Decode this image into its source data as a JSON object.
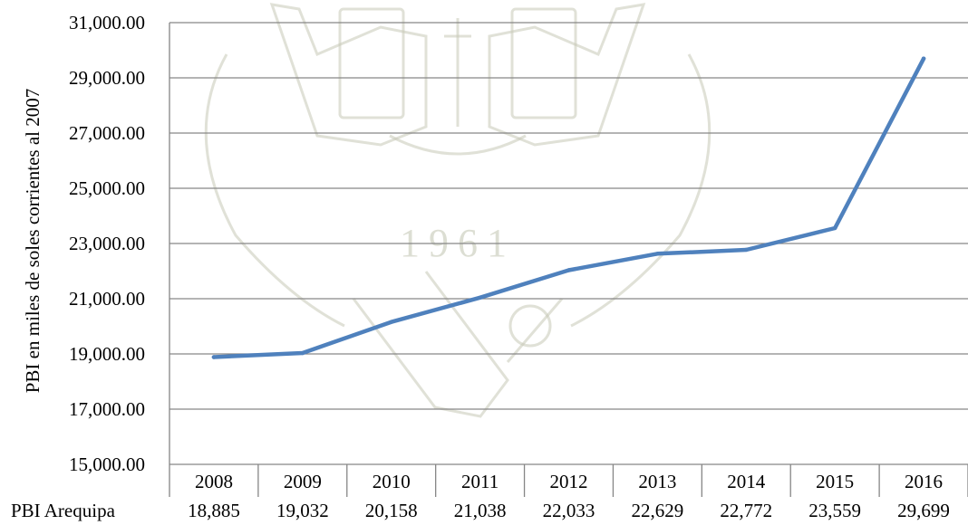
{
  "chart_data": {
    "type": "line",
    "categories": [
      "2008",
      "2009",
      "2010",
      "2011",
      "2012",
      "2013",
      "2014",
      "2015",
      "2016"
    ],
    "series": [
      {
        "name": "PBI Arequipa",
        "values": [
          18885,
          19032,
          20158,
          21038,
          22033,
          22629,
          22772,
          23559,
          29699
        ],
        "value_labels": [
          "18,885",
          "19,032",
          "20,158",
          "21,038",
          "22,033",
          "22,629",
          "22,772",
          "23,559",
          "29,699"
        ],
        "color": "#4f81bd"
      }
    ],
    "ylabel": "PBI en miles de soles corrientes al 2007",
    "ylim": [
      15000,
      31000
    ],
    "yticks": [
      15000,
      17000,
      19000,
      21000,
      23000,
      25000,
      27000,
      29000,
      31000
    ],
    "ytick_labels": [
      "15,000.00",
      "17,000.00",
      "19,000.00",
      "21,000.00",
      "23,000.00",
      "25,000.00",
      "27,000.00",
      "29,000.00",
      "31,000.00"
    ],
    "grid": true,
    "data_table": true,
    "watermark_text": "1961"
  },
  "colors": {
    "line": "#4f81bd",
    "grid": "#868686",
    "watermark": "#c6c9b6"
  }
}
